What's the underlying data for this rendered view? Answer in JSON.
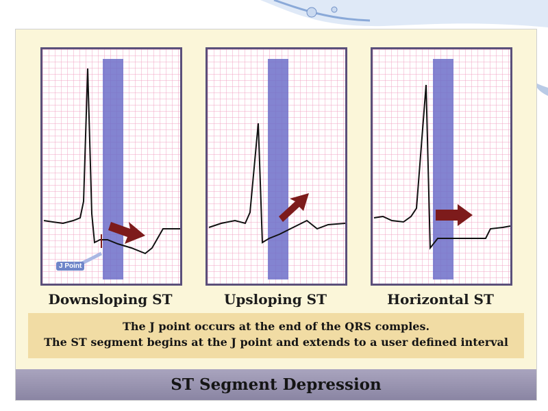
{
  "panels": [
    {
      "title": "Downsloping ST",
      "jpoint_label": "J Point"
    },
    {
      "title": "Upsloping ST"
    },
    {
      "title": "Horizontal ST"
    }
  ],
  "info": {
    "line1": "The J point occurs at the end of the QRS comples.",
    "line2": "The ST segment begins at the J point and extends to a user defined interval"
  },
  "footer": {
    "title": "ST Segment Depression"
  },
  "colors": {
    "grid": "#f2a3c3",
    "shade": "#6d6fc9",
    "arrow": "#7d1b1b",
    "trace": "#111111"
  }
}
